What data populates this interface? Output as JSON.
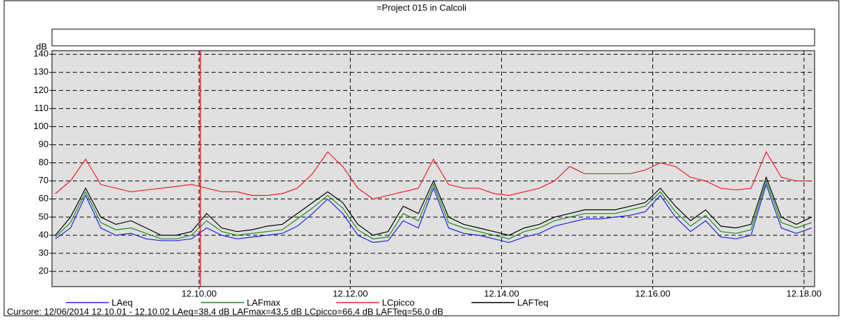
{
  "chart_data": {
    "type": "line",
    "title": "=Project 015 in Calcoli",
    "y_label": "dB",
    "footer": "Cursore: 12/06/2014 12.10.01 - 12.10.02  LAeq=38,4 dB  LAFmax=43,5 dB  LCpicco=66,4 dB  LAFTeq=56,0 dB",
    "x": [
      8.1,
      8.3,
      8.5,
      8.7,
      8.9,
      9.1,
      9.3,
      9.5,
      9.7,
      9.9,
      10.1,
      10.3,
      10.5,
      10.7,
      10.9,
      11.1,
      11.3,
      11.5,
      11.7,
      11.9,
      12.1,
      12.3,
      12.5,
      12.7,
      12.9,
      13.1,
      13.3,
      13.5,
      13.7,
      13.9,
      14.1,
      14.3,
      14.5,
      14.7,
      14.9,
      15.1,
      15.3,
      15.5,
      15.7,
      15.9,
      16.1,
      16.3,
      16.5,
      16.7,
      16.9,
      17.1,
      17.3,
      17.5,
      17.7,
      17.9,
      18.1
    ],
    "series": [
      {
        "name": "LAeq",
        "color": "#2020e0",
        "values": [
          38,
          44,
          62,
          44,
          40,
          41,
          38,
          37,
          37,
          38,
          44,
          40,
          38,
          39,
          40,
          41,
          45,
          52,
          60,
          52,
          40,
          36,
          37,
          48,
          44,
          66,
          44,
          41,
          40,
          38,
          36,
          39,
          41,
          45,
          47,
          49,
          49,
          50,
          51,
          53,
          62,
          50,
          42,
          48,
          39,
          38,
          40,
          68,
          44,
          41,
          44
        ]
      },
      {
        "name": "LAFmax",
        "color": "#1a8a1a",
        "values": [
          39,
          47,
          64,
          47,
          43,
          44,
          41,
          38,
          38,
          40,
          48,
          42,
          40,
          41,
          42,
          43,
          49,
          55,
          62,
          55,
          43,
          38,
          39,
          52,
          48,
          68,
          47,
          44,
          42,
          40,
          38,
          42,
          44,
          48,
          50,
          52,
          52,
          52,
          54,
          56,
          64,
          53,
          45,
          51,
          42,
          41,
          43,
          70,
          47,
          44,
          47
        ]
      },
      {
        "name": "LCpicco",
        "color": "#e8202a",
        "values": [
          63,
          70,
          82,
          68,
          66,
          64,
          65,
          66,
          67,
          68,
          66,
          64,
          64,
          62,
          62,
          63,
          66,
          74,
          86,
          78,
          66,
          60,
          62,
          64,
          66,
          82,
          68,
          66,
          66,
          63,
          62,
          64,
          66,
          70,
          78,
          74,
          74,
          74,
          74,
          76,
          80,
          78,
          72,
          70,
          66,
          65,
          66,
          86,
          72,
          70,
          70
        ]
      },
      {
        "name": "LAFTeq",
        "color": "#000000",
        "values": [
          40,
          50,
          66,
          50,
          46,
          48,
          44,
          40,
          40,
          42,
          52,
          44,
          42,
          43,
          45,
          46,
          52,
          58,
          64,
          58,
          46,
          40,
          42,
          56,
          52,
          70,
          50,
          46,
          44,
          42,
          40,
          44,
          46,
          50,
          52,
          54,
          54,
          54,
          56,
          58,
          66,
          56,
          48,
          54,
          45,
          44,
          46,
          72,
          50,
          46,
          50
        ]
      }
    ],
    "cursor": 10.017,
    "xlim": [
      8.055,
      18.14
    ],
    "xticks": [
      {
        "value": 10,
        "label": "12.10.00"
      },
      {
        "value": 12,
        "label": "12.12.00"
      },
      {
        "value": 14,
        "label": "12.14.00"
      },
      {
        "value": 16,
        "label": "12.16.00"
      },
      {
        "value": 18,
        "label": "12.18.00"
      }
    ],
    "ylim": [
      11.6,
      142
    ],
    "yticks": [
      20,
      30,
      40,
      50,
      60,
      70,
      80,
      90,
      100,
      110,
      120,
      130,
      140
    ],
    "grid": true
  }
}
